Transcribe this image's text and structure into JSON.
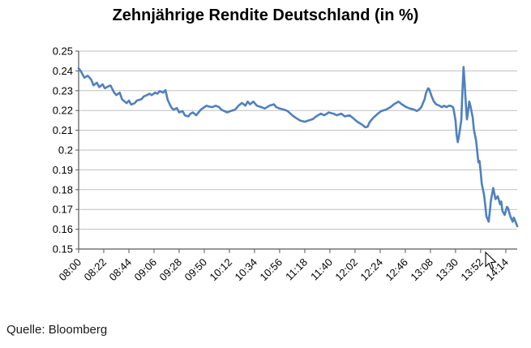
{
  "page": {
    "source_note": "Quelle: Bloomberg"
  },
  "chart_data": {
    "type": "line",
    "title": "Zehnjährige Rendite Deutschland (in %)",
    "xlabel": "",
    "ylabel": "",
    "legend": "none",
    "grid": "horizontal",
    "colors": {
      "series": "#4F81BD",
      "grid": "#BFBFBF",
      "axis": "#595959",
      "text": "#000000",
      "background": "#FFFFFF"
    },
    "y_axis": {
      "min": 0.15,
      "max": 0.25,
      "tick_labels": [
        "0.25",
        "0.24",
        "0.23",
        "0.22",
        "0.21",
        "0.2",
        "0.19",
        "0.18",
        "0.17",
        "0.16",
        "0.15"
      ]
    },
    "x_axis": {
      "tick_interval_minutes": 22,
      "tick_labels": [
        "08:00",
        "08:22",
        "08:44",
        "09:06",
        "09:28",
        "09:50",
        "10:12",
        "10:34",
        "10:56",
        "11:18",
        "11:40",
        "12:02",
        "12:24",
        "12:46",
        "13:08",
        "13:30",
        "13:52",
        "14:14"
      ]
    },
    "series": [
      {
        "name": "Zehnjährige Rendite Deutschland (in %)",
        "color": "#4F81BD",
        "points": [
          [
            "08:00",
            0.2413
          ],
          [
            "08:02",
            0.2398
          ],
          [
            "08:05",
            0.2366
          ],
          [
            "08:08",
            0.2376
          ],
          [
            "08:11",
            0.2356
          ],
          [
            "08:13",
            0.2327
          ],
          [
            "08:16",
            0.234
          ],
          [
            "08:18",
            0.2318
          ],
          [
            "08:21",
            0.2332
          ],
          [
            "08:23",
            0.2312
          ],
          [
            "08:26",
            0.2322
          ],
          [
            "08:28",
            0.2326
          ],
          [
            "08:31",
            0.2291
          ],
          [
            "08:33",
            0.2278
          ],
          [
            "08:36",
            0.229
          ],
          [
            "08:38",
            0.2257
          ],
          [
            "08:42",
            0.2237
          ],
          [
            "08:44",
            0.225
          ],
          [
            "08:46",
            0.223
          ],
          [
            "08:49",
            0.2237
          ],
          [
            "08:51",
            0.225
          ],
          [
            "08:55",
            0.2257
          ],
          [
            "08:57",
            0.2271
          ],
          [
            "09:00",
            0.2278
          ],
          [
            "09:02",
            0.2285
          ],
          [
            "09:04",
            0.2278
          ],
          [
            "09:07",
            0.229
          ],
          [
            "09:09",
            0.2285
          ],
          [
            "09:11",
            0.2298
          ],
          [
            "09:14",
            0.229
          ],
          [
            "09:16",
            0.2303
          ],
          [
            "09:18",
            0.2253
          ],
          [
            "09:21",
            0.2217
          ],
          [
            "09:23",
            0.2204
          ],
          [
            "09:26",
            0.2212
          ],
          [
            "09:28",
            0.219
          ],
          [
            "09:31",
            0.2197
          ],
          [
            "09:33",
            0.2176
          ],
          [
            "09:36",
            0.217
          ],
          [
            "09:38",
            0.2184
          ],
          [
            "09:40",
            0.219
          ],
          [
            "09:43",
            0.2176
          ],
          [
            "09:45",
            0.219
          ],
          [
            "09:47",
            0.2204
          ],
          [
            "09:50",
            0.2217
          ],
          [
            "09:52",
            0.2224
          ],
          [
            "09:54",
            0.222
          ],
          [
            "09:57",
            0.2217
          ],
          [
            "10:00",
            0.2224
          ],
          [
            "10:03",
            0.2217
          ],
          [
            "10:05",
            0.2204
          ],
          [
            "10:10",
            0.219
          ],
          [
            "10:13",
            0.2197
          ],
          [
            "10:17",
            0.2204
          ],
          [
            "10:20",
            0.2224
          ],
          [
            "10:23",
            0.2238
          ],
          [
            "10:26",
            0.2224
          ],
          [
            "10:28",
            0.2245
          ],
          [
            "10:30",
            0.2231
          ],
          [
            "10:33",
            0.2245
          ],
          [
            "10:36",
            0.2224
          ],
          [
            "10:40",
            0.2217
          ],
          [
            "10:43",
            0.221
          ],
          [
            "10:47",
            0.2224
          ],
          [
            "10:51",
            0.2231
          ],
          [
            "10:53",
            0.2217
          ],
          [
            "10:56",
            0.221
          ],
          [
            "11:00",
            0.2204
          ],
          [
            "11:03",
            0.2197
          ],
          [
            "11:07",
            0.2176
          ],
          [
            "11:10",
            0.2163
          ],
          [
            "11:14",
            0.2149
          ],
          [
            "11:18",
            0.2143
          ],
          [
            "11:21",
            0.2149
          ],
          [
            "11:25",
            0.2156
          ],
          [
            "11:28",
            0.217
          ],
          [
            "11:32",
            0.2184
          ],
          [
            "11:35",
            0.2176
          ],
          [
            "11:39",
            0.219
          ],
          [
            "11:43",
            0.2184
          ],
          [
            "11:46",
            0.2176
          ],
          [
            "11:50",
            0.2184
          ],
          [
            "11:53",
            0.217
          ],
          [
            "11:57",
            0.2176
          ],
          [
            "12:00",
            0.2163
          ],
          [
            "12:04",
            0.2143
          ],
          [
            "12:08",
            0.2129
          ],
          [
            "12:11",
            0.2115
          ],
          [
            "12:13",
            0.2118
          ],
          [
            "12:15",
            0.2143
          ],
          [
            "12:18",
            0.2163
          ],
          [
            "12:22",
            0.2184
          ],
          [
            "12:25",
            0.2197
          ],
          [
            "12:29",
            0.2204
          ],
          [
            "12:33",
            0.2217
          ],
          [
            "12:36",
            0.2231
          ],
          [
            "12:40",
            0.2245
          ],
          [
            "12:43",
            0.2231
          ],
          [
            "12:47",
            0.2217
          ],
          [
            "12:50",
            0.221
          ],
          [
            "12:54",
            0.2204
          ],
          [
            "12:56",
            0.2197
          ],
          [
            "12:58",
            0.2204
          ],
          [
            "13:00",
            0.2217
          ],
          [
            "13:03",
            0.2258
          ],
          [
            "13:04",
            0.2286
          ],
          [
            "13:06",
            0.2312
          ],
          [
            "13:07",
            0.2307
          ],
          [
            "13:09",
            0.2273
          ],
          [
            "13:11",
            0.2245
          ],
          [
            "13:13",
            0.2231
          ],
          [
            "13:16",
            0.2224
          ],
          [
            "13:18",
            0.2217
          ],
          [
            "13:20",
            0.2224
          ],
          [
            "13:22",
            0.2217
          ],
          [
            "13:24",
            0.2224
          ],
          [
            "13:26",
            0.2223
          ],
          [
            "13:28",
            0.2215
          ],
          [
            "13:30",
            0.215
          ],
          [
            "13:31",
            0.2075
          ],
          [
            "13:32",
            0.204
          ],
          [
            "13:33",
            0.207
          ],
          [
            "13:35",
            0.215
          ],
          [
            "13:36",
            0.2295
          ],
          [
            "13:37",
            0.242
          ],
          [
            "13:38",
            0.2335
          ],
          [
            "13:39",
            0.2235
          ],
          [
            "13:40",
            0.2155
          ],
          [
            "13:41",
            0.2195
          ],
          [
            "13:42",
            0.2245
          ],
          [
            "13:43",
            0.2225
          ],
          [
            "13:45",
            0.2165
          ],
          [
            "13:46",
            0.2105
          ],
          [
            "13:48",
            0.2047
          ],
          [
            "13:49",
            0.1993
          ],
          [
            "13:50",
            0.1938
          ],
          [
            "13:51",
            0.1945
          ],
          [
            "13:52",
            0.189
          ],
          [
            "13:53",
            0.1829
          ],
          [
            "13:55",
            0.1774
          ],
          [
            "13:56",
            0.172
          ],
          [
            "13:57",
            0.1665
          ],
          [
            "13:59",
            0.1638
          ],
          [
            "14:00",
            0.169
          ],
          [
            "14:01",
            0.1747
          ],
          [
            "14:03",
            0.1808
          ],
          [
            "14:05",
            0.1752
          ],
          [
            "14:07",
            0.1767
          ],
          [
            "14:09",
            0.1726
          ],
          [
            "14:10",
            0.174
          ],
          [
            "14:11",
            0.1693
          ],
          [
            "14:13",
            0.1672
          ],
          [
            "14:15",
            0.1713
          ],
          [
            "14:16",
            0.1706
          ],
          [
            "14:18",
            0.1665
          ],
          [
            "14:20",
            0.1638
          ],
          [
            "14:21",
            0.1659
          ],
          [
            "14:23",
            0.1631
          ],
          [
            "14:24",
            0.1615
          ]
        ]
      }
    ]
  }
}
